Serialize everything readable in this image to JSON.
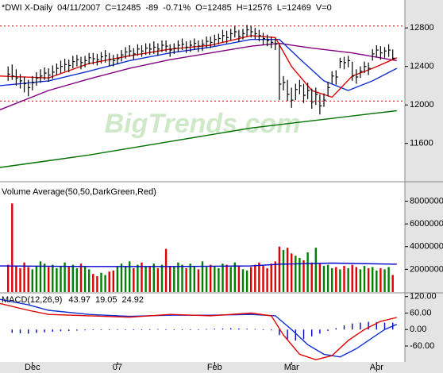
{
  "chart_data": [
    {
      "type": "ohlc",
      "title": "*DWI X-Daily",
      "header": [
        {
          "text": "04/11/2007",
          "color": "#000000"
        },
        {
          "text": "C=12485",
          "color": "#e00000"
        },
        {
          "text": "-89",
          "color": "#e00000"
        },
        {
          "text": "-0.71%",
          "color": "#e00000"
        },
        {
          "text": "O=12485",
          "color": "#e00000"
        },
        {
          "text": "H=12576",
          "color": "#000000"
        },
        {
          "text": "L=12469",
          "color": "#000000"
        },
        {
          "text": "V=0",
          "color": "#000000"
        }
      ],
      "watermark": "BigTrends.com",
      "xlim": [
        -2,
        98
      ],
      "ylim": [
        11210,
        13090
      ],
      "yticks": [
        11600,
        12000,
        12400,
        12800
      ],
      "color": "#000000",
      "high": [
        12400,
        12420,
        12370,
        12320,
        12290,
        12260,
        12300,
        12340,
        12370,
        12390,
        12380,
        12410,
        12430,
        12460,
        12480,
        12470,
        12510,
        12520,
        12500,
        12510,
        12540,
        12540,
        12530,
        12550,
        12570,
        12540,
        12520,
        12530,
        12570,
        12600,
        12620,
        12590,
        12630,
        12620,
        12640,
        12640,
        12660,
        12640,
        12670,
        12670,
        12630,
        12640,
        12670,
        12690,
        12660,
        12670,
        12690,
        12670,
        12680,
        12710,
        12710,
        12730,
        12740,
        12780,
        12770,
        12790,
        12820,
        12780,
        12790,
        12830,
        12820,
        12800,
        12780,
        12750,
        12730,
        12710,
        12690,
        12632,
        12300,
        12260,
        12180,
        12220,
        12260,
        12220,
        12230,
        12170,
        12180,
        12110,
        12120,
        12240,
        12350,
        12360,
        12490,
        12500,
        12510,
        12450,
        12370,
        12400,
        12450,
        12440,
        12580,
        12620,
        12610,
        12600,
        12630,
        12576
      ],
      "low": [
        12250,
        12260,
        12200,
        12170,
        12130,
        12090,
        12150,
        12200,
        12230,
        12260,
        12240,
        12270,
        12310,
        12330,
        12350,
        12340,
        12380,
        12400,
        12370,
        12390,
        12420,
        12420,
        12410,
        12430,
        12440,
        12400,
        12400,
        12420,
        12450,
        12480,
        12500,
        12470,
        12510,
        12500,
        12520,
        12520,
        12530,
        12510,
        12550,
        12550,
        12500,
        12530,
        12550,
        12570,
        12540,
        12550,
        12570,
        12550,
        12560,
        12590,
        12590,
        12610,
        12630,
        12650,
        12640,
        12670,
        12700,
        12650,
        12680,
        12710,
        12700,
        12680,
        12660,
        12620,
        12610,
        12590,
        12570,
        12050,
        12150,
        12040,
        11970,
        12050,
        12110,
        12020,
        12060,
        11960,
        12000,
        11900,
        11980,
        12090,
        12220,
        12210,
        12380,
        12370,
        12390,
        12250,
        12220,
        12280,
        12330,
        12310,
        12460,
        12500,
        12470,
        12490,
        12500,
        12469
      ],
      "close": [
        12320,
        12300,
        12280,
        12250,
        12220,
        12180,
        12230,
        12280,
        12300,
        12330,
        12310,
        12340,
        12380,
        12400,
        12420,
        12410,
        12450,
        12470,
        12440,
        12460,
        12490,
        12480,
        12470,
        12500,
        12510,
        12470,
        12460,
        12480,
        12520,
        12550,
        12560,
        12530,
        12580,
        12560,
        12590,
        12580,
        12600,
        12580,
        12620,
        12610,
        12570,
        12590,
        12620,
        12630,
        12600,
        12620,
        12640,
        12610,
        12630,
        12660,
        12650,
        12680,
        12690,
        12720,
        12700,
        12740,
        12760,
        12710,
        12740,
        12780,
        12760,
        12740,
        12720,
        12690,
        12670,
        12650,
        12632,
        12216,
        12234,
        12110,
        12050,
        12160,
        12200,
        12100,
        12150,
        12030,
        12110,
        11990,
        12050,
        12180,
        12300,
        12290,
        12450,
        12440,
        12460,
        12300,
        12290,
        12350,
        12400,
        12380,
        12530,
        12570,
        12540,
        12560,
        12570,
        12485
      ],
      "lines": [
        {
          "color": "#007000",
          "x": [
            -2,
            10,
            20,
            30,
            40,
            50,
            60,
            70,
            80,
            90,
            96
          ],
          "values": [
            11350,
            11420,
            11480,
            11550,
            11620,
            11690,
            11760,
            11810,
            11860,
            11910,
            11940
          ]
        },
        {
          "color": "#800080",
          "x": [
            -2,
            10,
            20,
            30,
            40,
            50,
            60,
            67,
            75,
            85,
            96
          ],
          "values": [
            11950,
            12150,
            12270,
            12380,
            12470,
            12540,
            12610,
            12640,
            12590,
            12540,
            12460
          ]
        },
        {
          "color": "#1030d0",
          "x": [
            -2,
            10,
            20,
            30,
            40,
            50,
            60,
            67,
            72,
            78,
            84,
            90,
            96
          ],
          "values": [
            12200,
            12250,
            12350,
            12460,
            12540,
            12600,
            12680,
            12680,
            12480,
            12250,
            12150,
            12250,
            12380
          ]
        },
        {
          "color": "#e00000",
          "x": [
            -2,
            10,
            20,
            30,
            40,
            50,
            60,
            66,
            70,
            75,
            80,
            85,
            90,
            96
          ],
          "values": [
            12300,
            12280,
            12430,
            12510,
            12580,
            12620,
            12720,
            12700,
            12400,
            12150,
            12080,
            12300,
            12380,
            12490
          ]
        }
      ],
      "reference_lines": {
        "color": "#e00000",
        "values": [
          12820,
          12040
        ]
      }
    },
    {
      "type": "volume",
      "title": "Volume Average(50,50,DarkGreen,Red)",
      "xlim": [
        -2,
        98
      ],
      "ylim": [
        0,
        9500000
      ],
      "yticks": [
        2000000,
        4000000,
        6000000,
        8000000
      ],
      "up_color": "#008000",
      "down_color": "#e00000",
      "values": [
        2400000,
        7800000,
        2300000,
        2100000,
        2600000,
        2200000,
        2000000,
        2300000,
        2700000,
        2500000,
        2200000,
        2400000,
        2100000,
        2300000,
        2600000,
        2200000,
        2400000,
        2100000,
        2500000,
        2300000,
        2000000,
        1600000,
        1400000,
        1700000,
        1500000,
        1800000,
        1900000,
        2200000,
        2500000,
        2300000,
        2700000,
        2100000,
        2400000,
        2600000,
        2200000,
        2300000,
        2500000,
        2100000,
        2400000,
        3800000,
        2300000,
        2200000,
        2600000,
        2400000,
        2100000,
        2500000,
        2300000,
        2000000,
        2700000,
        2200000,
        2400000,
        2300000,
        2100000,
        2500000,
        2400000,
        2200000,
        2600000,
        2300000,
        2000000,
        1900000,
        2200000,
        2400000,
        2600000,
        2300000,
        2100000,
        2500000,
        2700000,
        4000000,
        3700000,
        3900000,
        3400000,
        3200000,
        3000000,
        2800000,
        3500000,
        2600000,
        3900000,
        2500000,
        2300000,
        2400000,
        2100000,
        2200000,
        2000000,
        2300000,
        2100000,
        2400000,
        2200000,
        2000000,
        2300000,
        2100000,
        2200000,
        1900000,
        2100000,
        2000000,
        2200000,
        1500000
      ],
      "average": {
        "color": "#0000cc",
        "x": [
          -2,
          20,
          40,
          60,
          67,
          80,
          96
        ],
        "values": [
          2300000,
          2250000,
          2250000,
          2300000,
          2450000,
          2550000,
          2450000
        ]
      }
    },
    {
      "type": "macd",
      "title": "MACD(12,26,9)",
      "readout": [
        {
          "text": "43.97",
          "color": "#e00000"
        },
        {
          "text": "19.05",
          "color": "#0000cc"
        },
        {
          "text": "24.92",
          "color": "#000080"
        }
      ],
      "xlim": [
        -2,
        98
      ],
      "ylim": [
        -115,
        125
      ],
      "yticks": [
        {
          "value": 120,
          "label": "120.00"
        },
        {
          "value": 60,
          "label": "60.00"
        },
        {
          "value": 0,
          "label": "0.00"
        },
        {
          "value": -60,
          "label": "-60.00"
        }
      ],
      "xticks": [
        {
          "value": 6,
          "label": "Dec"
        },
        {
          "value": 27,
          "label": "07"
        },
        {
          "value": 51,
          "label": "Feb"
        },
        {
          "value": 70,
          "label": "Mar"
        },
        {
          "value": 91,
          "label": "Apr"
        }
      ],
      "lines": [
        {
          "color": "#1030d0",
          "x": [
            -2,
            5,
            10,
            20,
            30,
            40,
            50,
            60,
            66,
            70,
            74,
            78,
            82,
            86,
            90,
            93,
            96
          ],
          "values": [
            110,
            90,
            70,
            55,
            48,
            52,
            52,
            55,
            50,
            0,
            -55,
            -90,
            -100,
            -70,
            -30,
            0,
            19
          ]
        },
        {
          "color": "#e00000",
          "x": [
            -2,
            5,
            10,
            20,
            30,
            40,
            50,
            60,
            65,
            68,
            72,
            76,
            80,
            84,
            88,
            92,
            96
          ],
          "values": [
            95,
            70,
            55,
            50,
            45,
            55,
            50,
            60,
            50,
            -20,
            -90,
            -110,
            -95,
            -40,
            0,
            30,
            44
          ]
        }
      ],
      "histogram": {
        "color": "#0000cc",
        "x": [
          1,
          3,
          5,
          7,
          9,
          11,
          13,
          15,
          17,
          19,
          21,
          23,
          25,
          27,
          29,
          31,
          33,
          35,
          37,
          39,
          41,
          43,
          45,
          47,
          49,
          51,
          53,
          55,
          57,
          59,
          61,
          63,
          65,
          67,
          69,
          71,
          73,
          75,
          77,
          79,
          81,
          83,
          85,
          87,
          89,
          91,
          93,
          95
        ],
        "values": [
          -12,
          -14,
          -15,
          -12,
          -10,
          -8,
          -6,
          -5,
          -4,
          -3,
          -2,
          -1,
          0,
          1,
          -1,
          -2,
          -1,
          1,
          2,
          1,
          -1,
          -2,
          -1,
          1,
          2,
          3,
          4,
          5,
          4,
          3,
          2,
          0,
          -3,
          -20,
          -35,
          -40,
          -35,
          -25,
          -15,
          -5,
          5,
          15,
          22,
          25,
          28,
          27,
          25,
          25
        ]
      }
    }
  ]
}
